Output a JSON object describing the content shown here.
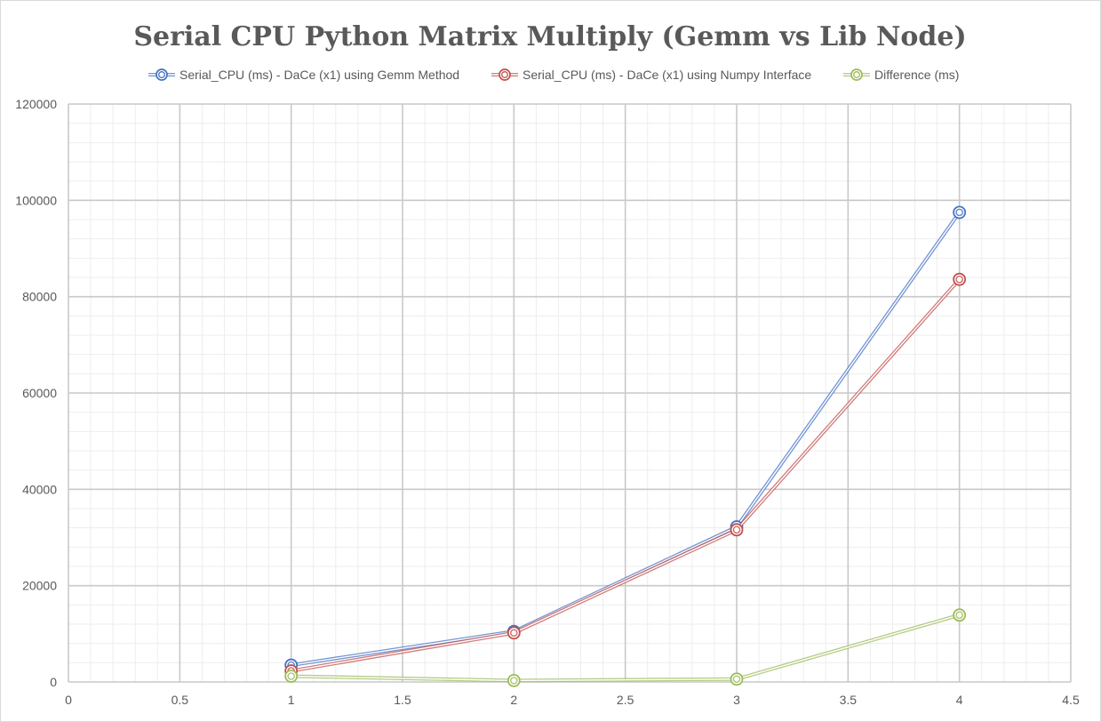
{
  "chart_data": {
    "type": "scatter",
    "title": "Serial CPU Python Matrix Multiply (Gemm vs Lib Node)",
    "xlabel": "",
    "ylabel": "",
    "xlim": [
      0,
      4.5
    ],
    "ylim": [
      0,
      120000
    ],
    "x_ticks": [
      0,
      0.5,
      1,
      1.5,
      2,
      2.5,
      3,
      3.5,
      4,
      4.5
    ],
    "y_ticks": [
      0,
      20000,
      40000,
      60000,
      80000,
      100000,
      120000
    ],
    "grid": "major and minor",
    "legend_position": "top",
    "series": [
      {
        "name": "Serial_CPU (ms) - DaCe (x1) using Gemm Method",
        "color": "#4472c4",
        "x": [
          1,
          2,
          3,
          4
        ],
        "y": [
          3500,
          10500,
          32200,
          97500
        ]
      },
      {
        "name": "Serial_CPU (ms) - DaCe (x1) using Numpy Interface",
        "color": "#c0504d",
        "x": [
          1,
          2,
          3,
          4
        ],
        "y": [
          2300,
          10200,
          31600,
          83600
        ]
      },
      {
        "name": "Difference (ms)",
        "color": "#9bbb59",
        "x": [
          1,
          2,
          3,
          4
        ],
        "y": [
          1200,
          300,
          600,
          13900
        ]
      }
    ]
  }
}
